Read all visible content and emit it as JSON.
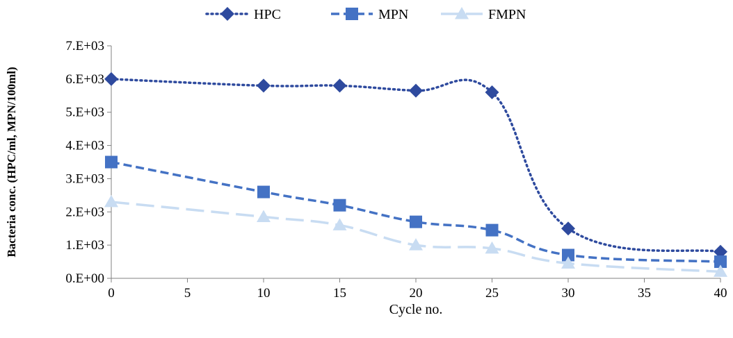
{
  "chart_data": {
    "type": "line",
    "xlabel": "Cycle no.",
    "ylabel": "Bacteria conc. (HPC/ml, MPN/100ml)",
    "xlim": [
      0,
      40
    ],
    "ylim": [
      0,
      7000
    ],
    "x_ticks": [
      "0",
      "5",
      "10",
      "15",
      "20",
      "25",
      "30",
      "35",
      "40"
    ],
    "y_ticks": [
      "0.E+00",
      "1.E+03",
      "2.E+03",
      "3.E+03",
      "4.E+03",
      "5.E+03",
      "6.E+03",
      "7.E+03"
    ],
    "grid": false,
    "legend_position": "top",
    "series": [
      {
        "name": "HPC",
        "color": "#2e4a9e",
        "marker": "diamond",
        "dash": "dotted",
        "x": [
          0,
          10,
          15,
          20,
          25,
          30,
          40
        ],
        "y": [
          6000,
          5800,
          5800,
          5650,
          5600,
          1500,
          800
        ]
      },
      {
        "name": "MPN",
        "color": "#4472c4",
        "marker": "square",
        "dash": "dashed",
        "x": [
          0,
          10,
          15,
          20,
          25,
          30,
          40
        ],
        "y": [
          3500,
          2600,
          2200,
          1700,
          1450,
          700,
          500
        ]
      },
      {
        "name": "FMPN",
        "color": "#c8dcf2",
        "marker": "triangle",
        "dash": "longdash",
        "x": [
          0,
          10,
          15,
          20,
          25,
          30,
          40
        ],
        "y": [
          2300,
          1850,
          1600,
          1000,
          900,
          450,
          200
        ]
      }
    ]
  }
}
